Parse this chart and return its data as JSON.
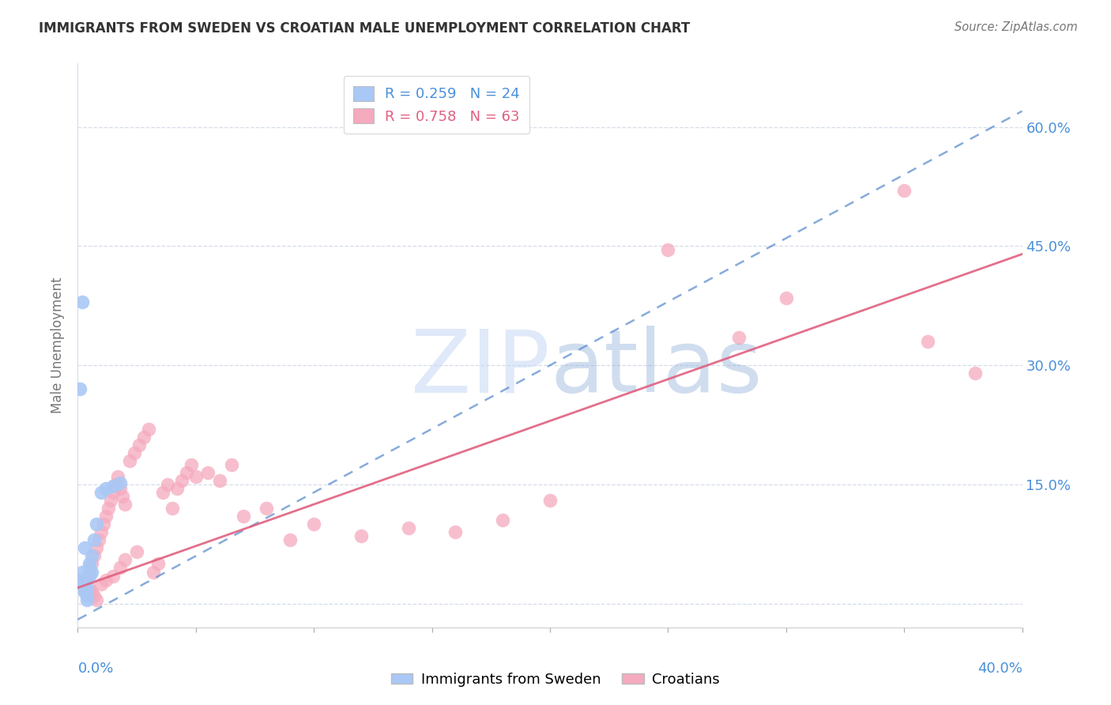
{
  "title": "IMMIGRANTS FROM SWEDEN VS CROATIAN MALE UNEMPLOYMENT CORRELATION CHART",
  "source": "Source: ZipAtlas.com",
  "ylabel": "Male Unemployment",
  "y_ticks": [
    0.0,
    0.15,
    0.3,
    0.45,
    0.6
  ],
  "y_tick_labels": [
    "",
    "15.0%",
    "30.0%",
    "45.0%",
    "60.0%"
  ],
  "xlim": [
    0.0,
    0.4
  ],
  "ylim": [
    -0.03,
    0.68
  ],
  "sweden_R": 0.259,
  "sweden_N": 24,
  "croatian_R": 0.758,
  "croatian_N": 63,
  "sweden_color": "#aac8f5",
  "croatian_color": "#f5aabe",
  "sweden_line_color": "#5588cc",
  "croatian_line_color": "#e06080",
  "axis_text_color": "#4a90d9",
  "grid_color": "#d5dde8",
  "title_color": "#333333",
  "sweden_x": [
    0.001,
    0.002,
    0.003,
    0.004,
    0.005,
    0.006,
    0.007,
    0.008,
    0.01,
    0.012,
    0.015,
    0.018,
    0.003,
    0.004,
    0.005,
    0.002,
    0.003,
    0.004,
    0.005,
    0.006,
    0.002,
    0.001,
    0.003,
    0.004
  ],
  "sweden_y": [
    0.03,
    0.04,
    0.02,
    0.01,
    0.05,
    0.06,
    0.08,
    0.1,
    0.14,
    0.145,
    0.148,
    0.152,
    0.025,
    0.03,
    0.045,
    0.025,
    0.07,
    0.005,
    0.035,
    0.04,
    0.38,
    0.27,
    0.015,
    0.02
  ],
  "croatian_x": [
    0.001,
    0.002,
    0.003,
    0.004,
    0.005,
    0.006,
    0.007,
    0.008,
    0.009,
    0.01,
    0.011,
    0.012,
    0.013,
    0.014,
    0.015,
    0.016,
    0.017,
    0.018,
    0.019,
    0.02,
    0.022,
    0.024,
    0.026,
    0.028,
    0.03,
    0.032,
    0.034,
    0.036,
    0.038,
    0.04,
    0.042,
    0.044,
    0.046,
    0.048,
    0.05,
    0.055,
    0.06,
    0.065,
    0.07,
    0.08,
    0.09,
    0.1,
    0.12,
    0.14,
    0.16,
    0.18,
    0.005,
    0.006,
    0.007,
    0.008,
    0.01,
    0.012,
    0.015,
    0.018,
    0.02,
    0.025,
    0.2,
    0.28,
    0.3,
    0.36,
    0.38,
    0.25,
    0.35
  ],
  "croatian_y": [
    0.02,
    0.025,
    0.03,
    0.035,
    0.04,
    0.05,
    0.06,
    0.07,
    0.08,
    0.09,
    0.1,
    0.11,
    0.12,
    0.13,
    0.14,
    0.15,
    0.16,
    0.145,
    0.135,
    0.125,
    0.18,
    0.19,
    0.2,
    0.21,
    0.22,
    0.04,
    0.05,
    0.14,
    0.15,
    0.12,
    0.145,
    0.155,
    0.165,
    0.175,
    0.16,
    0.165,
    0.155,
    0.175,
    0.11,
    0.12,
    0.08,
    0.1,
    0.085,
    0.095,
    0.09,
    0.105,
    0.02,
    0.015,
    0.01,
    0.005,
    0.025,
    0.03,
    0.035,
    0.045,
    0.055,
    0.065,
    0.13,
    0.335,
    0.385,
    0.33,
    0.29,
    0.445,
    0.52
  ],
  "sweden_line_x0": 0.0,
  "sweden_line_y0": -0.02,
  "sweden_line_x1": 0.4,
  "sweden_line_y1": 0.62,
  "croatian_line_x0": 0.0,
  "croatian_line_y0": 0.02,
  "croatian_line_x1": 0.4,
  "croatian_line_y1": 0.44
}
